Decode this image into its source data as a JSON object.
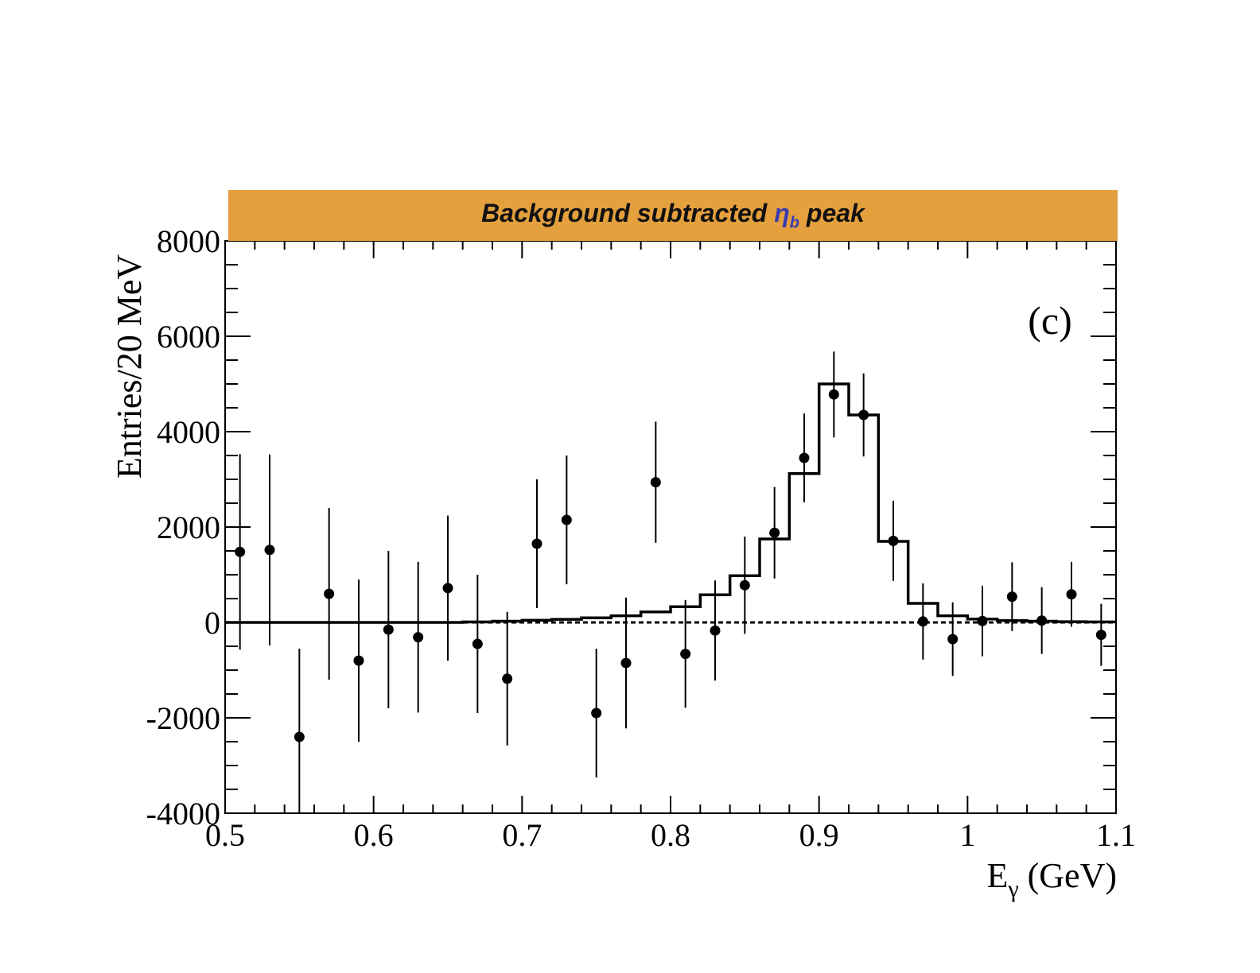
{
  "banner": {
    "prefix": "Background subtracted ",
    "symbol": "η",
    "symbol_sub": "b",
    "suffix": " peak",
    "background_color": "#e5a03e",
    "symbol_color": "#3b3bb0"
  },
  "panel_label": "(c)",
  "chart_data": {
    "type": "scatter",
    "title": "Background subtracted ηb peak",
    "xlabel": "Eγ (GeV)",
    "xlabel_main": "E",
    "xlabel_sub": "γ",
    "xlabel_unit": " (GeV)",
    "ylabel": "Entries/20 MeV",
    "xlim": [
      0.5,
      1.1
    ],
    "ylim": [
      -4000,
      8000
    ],
    "x_ticks": [
      0.5,
      0.6,
      0.7,
      0.8,
      0.9,
      1.0,
      1.1
    ],
    "x_tick_labels": [
      "0.5",
      "0.6",
      "0.7",
      "0.8",
      "0.9",
      "1",
      "1.1"
    ],
    "y_ticks": [
      -4000,
      -2000,
      0,
      2000,
      4000,
      6000,
      8000
    ],
    "y_tick_labels": [
      "-4000",
      "-2000",
      "0",
      "2000",
      "4000",
      "6000",
      "8000"
    ],
    "grid": false,
    "series": [
      {
        "kind": "points_with_errors",
        "x": [
          0.51,
          0.53,
          0.55,
          0.57,
          0.59,
          0.61,
          0.63,
          0.65,
          0.67,
          0.69,
          0.71,
          0.73,
          0.75,
          0.77,
          0.79,
          0.81,
          0.83,
          0.85,
          0.87,
          0.89,
          0.91,
          0.93,
          0.95,
          0.97,
          0.99,
          1.01,
          1.03,
          1.05,
          1.07,
          1.09
        ],
        "y": [
          1480,
          1520,
          -2400,
          600,
          -800,
          -150,
          -310,
          720,
          -450,
          -1180,
          1650,
          2150,
          -1900,
          -850,
          2940,
          -660,
          -170,
          780,
          1880,
          3450,
          4780,
          4350,
          1710,
          20,
          -350,
          30,
          540,
          40,
          590,
          -260
        ],
        "yerr": [
          2050,
          2000,
          1850,
          1800,
          1700,
          1650,
          1580,
          1520,
          1450,
          1400,
          1350,
          1350,
          1350,
          1370,
          1270,
          1130,
          1050,
          1020,
          960,
          930,
          900,
          870,
          840,
          800,
          770,
          740,
          720,
          700,
          680,
          650
        ]
      },
      {
        "kind": "histogram_fit",
        "bin_edges": [
          0.5,
          0.52,
          0.54,
          0.56,
          0.58,
          0.6,
          0.62,
          0.64,
          0.66,
          0.68,
          0.7,
          0.72,
          0.74,
          0.76,
          0.78,
          0.8,
          0.82,
          0.84,
          0.86,
          0.88,
          0.9,
          0.92,
          0.94,
          0.96,
          0.98,
          1.0,
          1.02,
          1.04,
          1.06,
          1.08,
          1.1
        ],
        "values": [
          0,
          0,
          0,
          0,
          0,
          0,
          0,
          0,
          10,
          25,
          45,
          65,
          95,
          140,
          220,
          330,
          580,
          980,
          1750,
          3120,
          5000,
          4350,
          1700,
          400,
          140,
          70,
          40,
          25,
          15,
          10
        ]
      },
      {
        "kind": "reference_line_dashed",
        "y": 0
      }
    ]
  }
}
